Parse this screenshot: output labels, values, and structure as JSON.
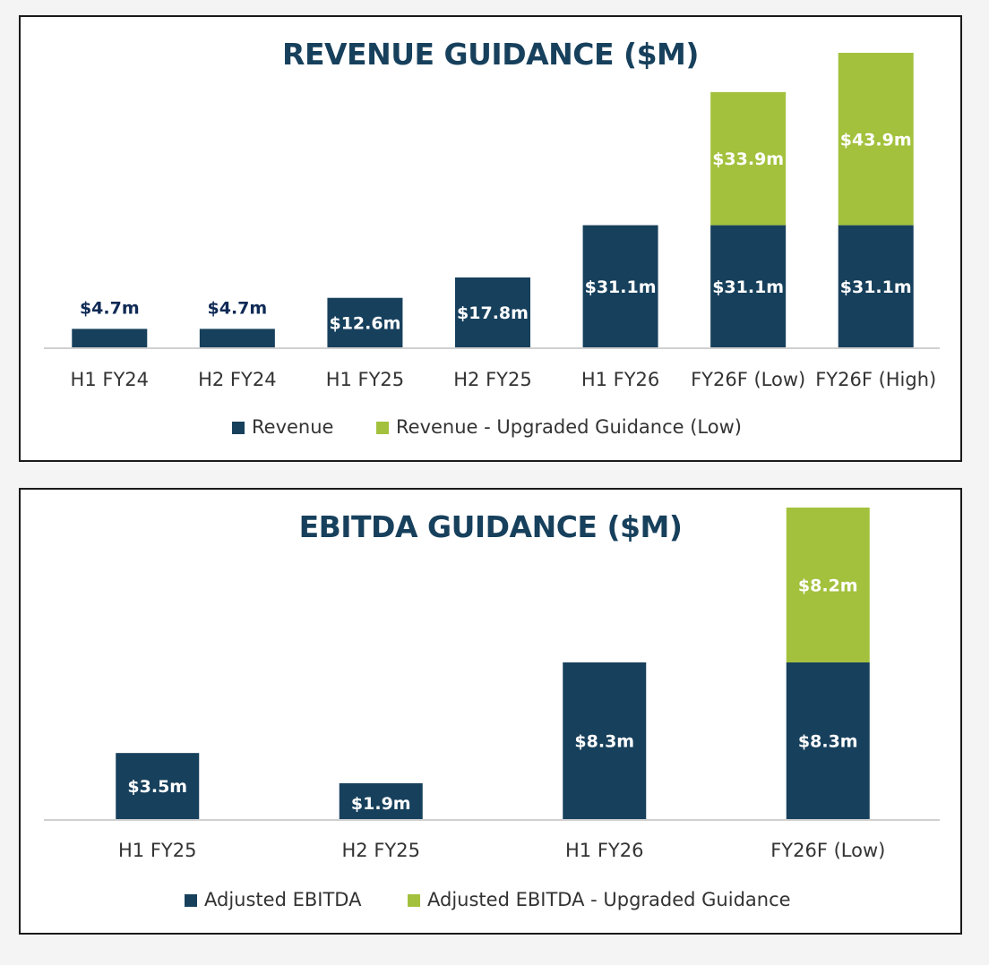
{
  "colors": {
    "base": "#17405c",
    "upgrade": "#a3c13d",
    "outside_label": "#0f2a55",
    "inside_label": "#ffffff"
  },
  "chart_data": [
    {
      "type": "bar",
      "stacked": true,
      "title": "REVENUE GUIDANCE ($M)",
      "categories": [
        "H1 FY24",
        "H2 FY24",
        "H1 FY25",
        "H2 FY25",
        "H1 FY26",
        "FY26F (Low)",
        "FY26F (High)"
      ],
      "series": [
        {
          "name": "Revenue",
          "color": "#17405c",
          "values": [
            4.7,
            4.7,
            12.6,
            17.8,
            31.1,
            31.1,
            31.1
          ],
          "labels": [
            "$4.7m",
            "$4.7m",
            "$12.6m",
            "$17.8m",
            "$31.1m",
            "$31.1m",
            "$31.1m"
          ]
        },
        {
          "name": "Revenue - Upgraded Guidance (Low)",
          "color": "#a3c13d",
          "values": [
            0,
            0,
            0,
            0,
            0,
            33.9,
            43.9
          ],
          "labels": [
            "",
            "",
            "",
            "",
            "",
            "$33.9m",
            "$43.9m"
          ]
        }
      ],
      "ylim": [
        0,
        75
      ],
      "legend": "bottom",
      "grid": false
    },
    {
      "type": "bar",
      "stacked": true,
      "title": "EBITDA GUIDANCE ($M)",
      "categories": [
        "H1 FY25",
        "H2 FY25",
        "H1 FY26",
        "FY26F (Low)"
      ],
      "series": [
        {
          "name": "Adjusted EBITDA",
          "color": "#17405c",
          "values": [
            3.5,
            1.9,
            8.3,
            8.3
          ],
          "labels": [
            "$3.5m",
            "$1.9m",
            "$8.3m",
            "$8.3m"
          ]
        },
        {
          "name": "Adjusted EBITDA - Upgraded Guidance",
          "color": "#a3c13d",
          "values": [
            0,
            0,
            0,
            8.2
          ],
          "labels": [
            "",
            "",
            "",
            "$8.2m"
          ]
        }
      ],
      "ylim": [
        0,
        16.5
      ],
      "legend": "bottom",
      "grid": false
    }
  ]
}
